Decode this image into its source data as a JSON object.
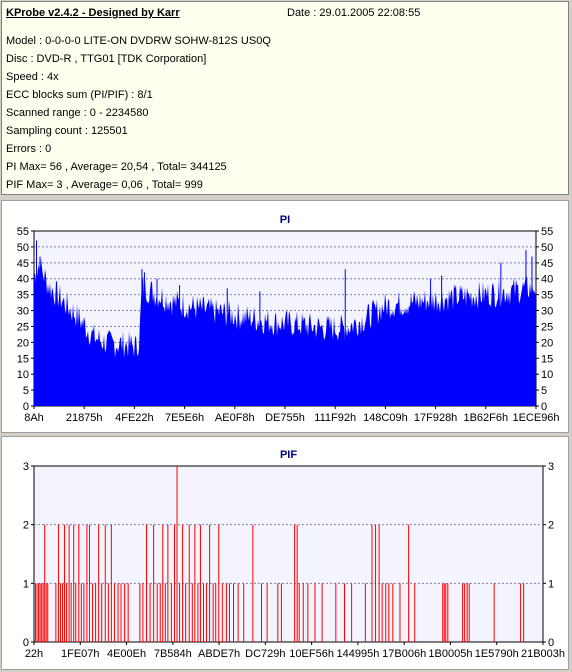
{
  "header": {
    "title": "KProbe v2.4.2 - Designed by Karr",
    "date": "Date : 29.01.2005 22:08:55",
    "lines": [
      "Model : 0-0-0-0 LITE-ON DVDRW SOHW-812S  US0Q",
      "Disc : DVD-R , TTG01 [TDK Corporation]",
      "Speed : 4x",
      "ECC blocks sum (PI/PIF) : 8/1",
      "Scanned range : 0 - 2234580",
      "Sampling count : 125501",
      "Errors : 0",
      "PI Max= 56 , Average= 20,54 , Total= 344125",
      "PIF Max= 3 , Average= 0,06 , Total= 999"
    ]
  },
  "colors": {
    "pi": "#0000ff",
    "pif": "#ff0000",
    "plot_bg": "#f4f4ff",
    "grid": "#7f7fb0"
  },
  "chart_data": [
    {
      "type": "area",
      "title": "PI",
      "ylim": [
        0,
        55
      ],
      "yticks": [
        0,
        5,
        10,
        15,
        20,
        25,
        30,
        35,
        40,
        45,
        50,
        55
      ],
      "xticks": [
        "8Ah",
        "21875h",
        "4FE22h",
        "7E5E6h",
        "AE0F8h",
        "DE755h",
        "111F92h",
        "148C09h",
        "17F928h",
        "1B62F6h",
        "1ECE96h"
      ],
      "grid": true,
      "profile": [
        [
          0.0,
          41
        ],
        [
          0.01,
          45
        ],
        [
          0.03,
          38
        ],
        [
          0.06,
          33
        ],
        [
          0.09,
          28
        ],
        [
          0.12,
          22
        ],
        [
          0.15,
          20
        ],
        [
          0.18,
          20
        ],
        [
          0.205,
          19
        ],
        [
          0.21,
          22
        ],
        [
          0.215,
          38
        ],
        [
          0.24,
          36
        ],
        [
          0.28,
          33
        ],
        [
          0.33,
          31
        ],
        [
          0.4,
          29
        ],
        [
          0.47,
          27
        ],
        [
          0.53,
          26
        ],
        [
          0.58,
          25
        ],
        [
          0.62,
          25
        ],
        [
          0.66,
          28
        ],
        [
          0.7,
          32
        ],
        [
          0.75,
          33
        ],
        [
          0.8,
          34
        ],
        [
          0.86,
          35
        ],
        [
          0.92,
          36
        ],
        [
          0.97,
          37
        ],
        [
          1.0,
          38
        ]
      ],
      "peaks": [
        [
          0.005,
          52
        ],
        [
          0.012,
          47
        ],
        [
          0.215,
          43
        ],
        [
          0.22,
          42
        ],
        [
          0.245,
          40
        ],
        [
          0.29,
          38
        ],
        [
          0.385,
          37
        ],
        [
          0.45,
          36
        ],
        [
          0.62,
          43
        ],
        [
          0.79,
          40
        ],
        [
          0.812,
          41
        ],
        [
          0.93,
          45
        ],
        [
          0.98,
          49
        ],
        [
          0.992,
          47
        ]
      ]
    },
    {
      "type": "bar",
      "title": "PIF",
      "ylim": [
        0,
        3
      ],
      "yticks": [
        0,
        1,
        2,
        3
      ],
      "xticks": [
        "22h",
        "1FE07h",
        "4E00Eh",
        "7B584h",
        "ABDE7h",
        "DC729h",
        "10EF56h",
        "144995h",
        "17B006h",
        "1B0005h",
        "1E5790h",
        "21B003h"
      ],
      "grid": true,
      "points": [
        [
          0.003,
          1
        ],
        [
          0.006,
          1
        ],
        [
          0.009,
          1
        ],
        [
          0.012,
          1
        ],
        [
          0.015,
          1
        ],
        [
          0.018,
          1
        ],
        [
          0.021,
          2
        ],
        [
          0.024,
          1
        ],
        [
          0.027,
          1
        ],
        [
          0.043,
          1
        ],
        [
          0.048,
          2
        ],
        [
          0.052,
          1
        ],
        [
          0.056,
          1
        ],
        [
          0.06,
          2
        ],
        [
          0.064,
          1
        ],
        [
          0.069,
          2
        ],
        [
          0.073,
          1
        ],
        [
          0.078,
          2
        ],
        [
          0.082,
          1
        ],
        [
          0.088,
          2
        ],
        [
          0.093,
          1
        ],
        [
          0.098,
          1
        ],
        [
          0.104,
          2
        ],
        [
          0.109,
          2
        ],
        [
          0.115,
          1
        ],
        [
          0.121,
          1
        ],
        [
          0.127,
          2
        ],
        [
          0.133,
          1
        ],
        [
          0.14,
          2
        ],
        [
          0.146,
          1
        ],
        [
          0.152,
          2
        ],
        [
          0.158,
          1
        ],
        [
          0.165,
          1
        ],
        [
          0.171,
          1
        ],
        [
          0.178,
          1
        ],
        [
          0.185,
          1
        ],
        [
          0.208,
          1
        ],
        [
          0.214,
          1
        ],
        [
          0.221,
          2
        ],
        [
          0.228,
          1
        ],
        [
          0.235,
          2
        ],
        [
          0.242,
          1
        ],
        [
          0.248,
          1
        ],
        [
          0.253,
          2
        ],
        [
          0.258,
          1
        ],
        [
          0.263,
          2
        ],
        [
          0.27,
          1
        ],
        [
          0.276,
          2
        ],
        [
          0.281,
          3
        ],
        [
          0.286,
          1
        ],
        [
          0.292,
          2
        ],
        [
          0.298,
          1
        ],
        [
          0.305,
          2
        ],
        [
          0.311,
          1
        ],
        [
          0.316,
          2
        ],
        [
          0.322,
          1
        ],
        [
          0.327,
          2
        ],
        [
          0.333,
          1
        ],
        [
          0.339,
          1
        ],
        [
          0.345,
          2
        ],
        [
          0.352,
          1
        ],
        [
          0.357,
          1
        ],
        [
          0.363,
          2
        ],
        [
          0.37,
          1
        ],
        [
          0.378,
          1
        ],
        [
          0.384,
          1
        ],
        [
          0.392,
          1
        ],
        [
          0.401,
          1
        ],
        [
          0.412,
          1
        ],
        [
          0.43,
          2
        ],
        [
          0.447,
          1
        ],
        [
          0.458,
          1
        ],
        [
          0.479,
          1
        ],
        [
          0.486,
          1
        ],
        [
          0.512,
          2
        ],
        [
          0.517,
          2
        ],
        [
          0.521,
          1
        ],
        [
          0.529,
          1
        ],
        [
          0.538,
          1
        ],
        [
          0.552,
          1
        ],
        [
          0.566,
          1
        ],
        [
          0.593,
          1
        ],
        [
          0.61,
          1
        ],
        [
          0.624,
          1
        ],
        [
          0.651,
          1
        ],
        [
          0.664,
          2
        ],
        [
          0.671,
          2
        ],
        [
          0.678,
          2
        ],
        [
          0.684,
          1
        ],
        [
          0.691,
          1
        ],
        [
          0.697,
          1
        ],
        [
          0.705,
          1
        ],
        [
          0.719,
          1
        ],
        [
          0.736,
          2
        ],
        [
          0.748,
          1
        ],
        [
          0.803,
          1
        ],
        [
          0.806,
          1
        ],
        [
          0.809,
          1
        ],
        [
          0.813,
          1
        ],
        [
          0.842,
          1
        ],
        [
          0.846,
          1
        ],
        [
          0.851,
          1
        ],
        [
          0.855,
          1
        ],
        [
          0.904,
          1
        ],
        [
          0.956,
          1
        ],
        [
          0.962,
          1
        ]
      ]
    }
  ]
}
